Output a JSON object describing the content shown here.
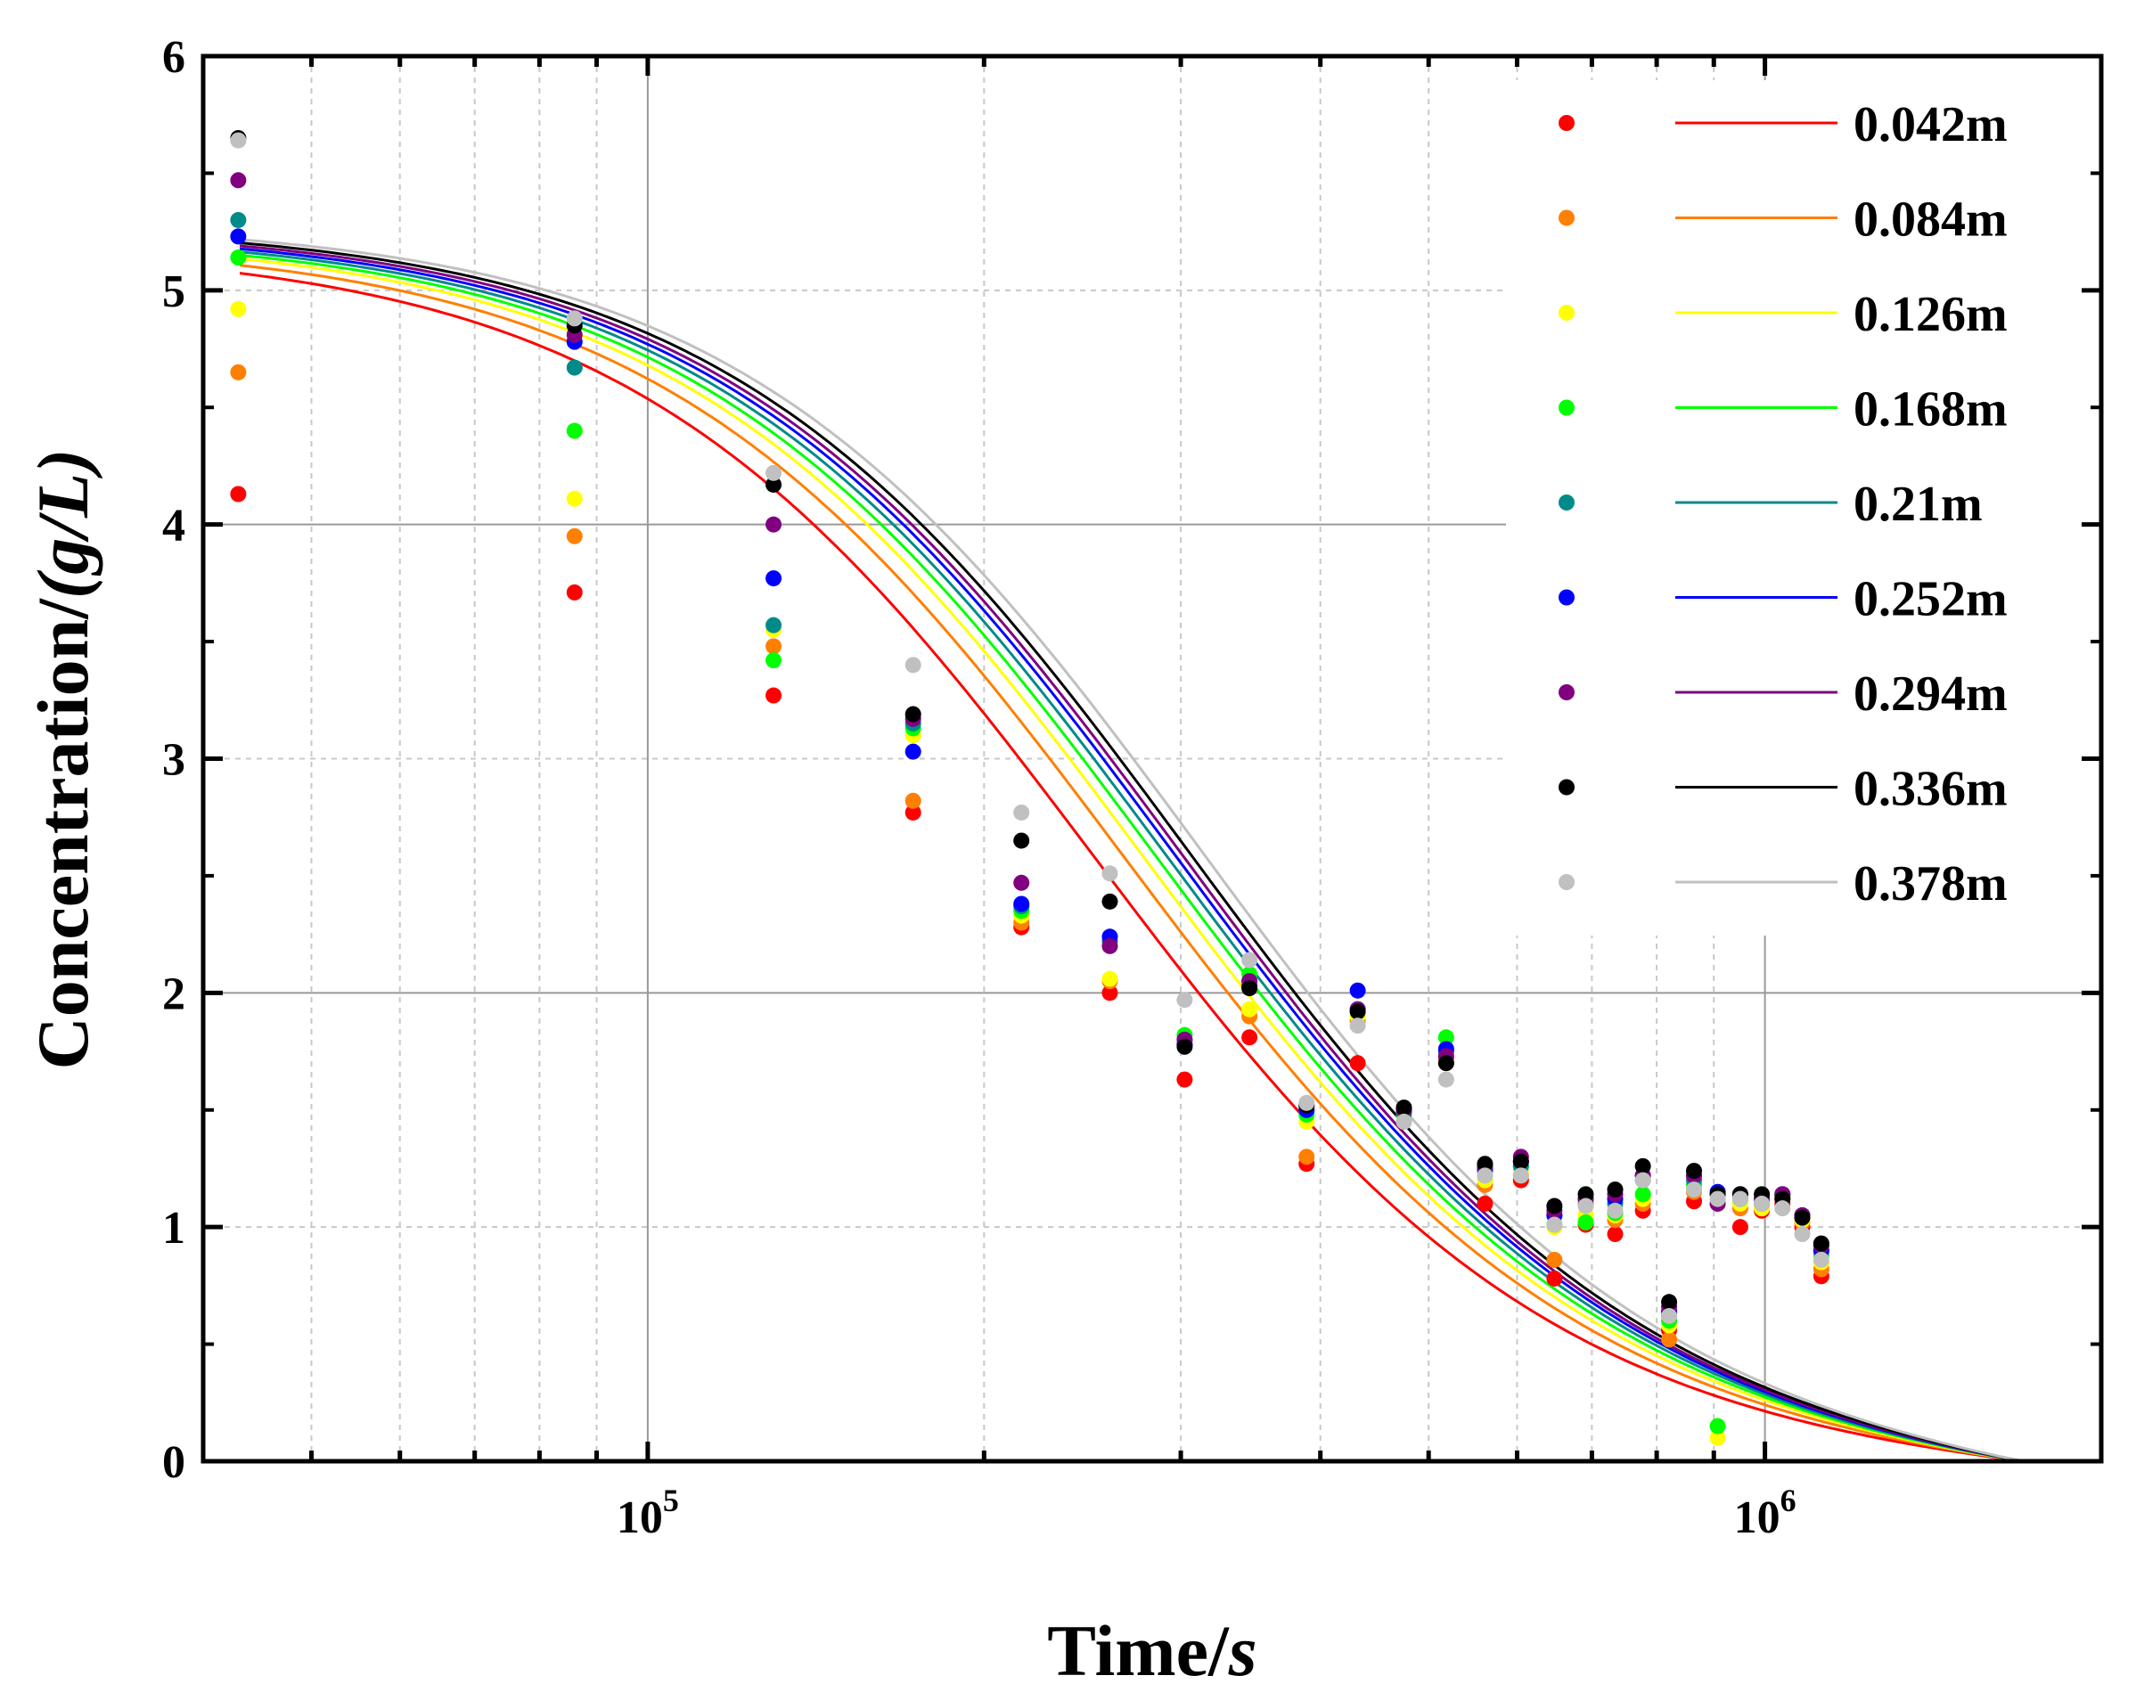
{
  "chart_data": {
    "type": "scatter",
    "xlabel": "Time/",
    "xlabel_unit": "s",
    "ylabel": "Concentration/",
    "ylabel_unit": "(g/L)",
    "xscale": "log",
    "xlim": [
      40000,
      2000000
    ],
    "ylim": [
      0,
      6
    ],
    "y_ticks": [
      "0",
      "1",
      "2",
      "3",
      "4",
      "5",
      "6"
    ],
    "x_ticks": [
      {
        "base": "10",
        "exp": "5",
        "value": 100000
      },
      {
        "base": "10",
        "exp": "6",
        "value": 1000000
      }
    ],
    "grid": true,
    "legend_position": "top-right",
    "x": [
      43000,
      86000,
      129600,
      172800,
      216000,
      259200,
      302400,
      345600,
      388800,
      432000,
      475200,
      518400,
      561600,
      604800,
      648000,
      691200,
      734400,
      777600,
      820800,
      864000,
      907200,
      950400,
      993600,
      1036800,
      1080000,
      1123200
    ],
    "series": [
      {
        "name": "0.042m",
        "color": "#ff0000",
        "fit": {
          "A": 5.2,
          "t50": 250000,
          "k": 2.1
        },
        "values": [
          4.13,
          3.71,
          3.27,
          2.77,
          2.28,
          2.0,
          1.63,
          1.81,
          1.27,
          1.7,
          null,
          1.7,
          1.1,
          1.2,
          0.78,
          1.01,
          0.97,
          1.07,
          0.56,
          1.11,
          null,
          1.0,
          1.07,
          1.1,
          1.0,
          0.79
        ]
      },
      {
        "name": "0.084m",
        "color": "#ff7f00",
        "fit": {
          "A": 5.22,
          "t50": 265000,
          "k": 2.1
        },
        "values": [
          4.65,
          3.95,
          3.48,
          2.82,
          2.3,
          2.05,
          1.78,
          1.9,
          1.3,
          1.88,
          1.45,
          1.72,
          1.18,
          1.22,
          0.86,
          1.05,
          1.03,
          1.1,
          0.52,
          1.15,
          1.1,
          1.08,
          1.08,
          1.12,
          1.02,
          0.82
        ]
      },
      {
        "name": "0.126m",
        "color": "#ffff00",
        "fit": {
          "A": 5.24,
          "t50": 275000,
          "k": 2.1
        },
        "values": [
          4.92,
          4.11,
          3.55,
          3.1,
          2.33,
          2.06,
          1.8,
          1.93,
          1.45,
          1.9,
          1.48,
          1.75,
          1.2,
          1.24,
          1.0,
          1.05,
          1.05,
          1.12,
          0.58,
          1.17,
          0.1,
          1.1,
          1.08,
          1.13,
          1.03,
          0.85
        ]
      },
      {
        "name": "0.168m",
        "color": "#00ff00",
        "fit": {
          "A": 5.25,
          "t50": 282000,
          "k": 2.1
        },
        "values": [
          5.14,
          4.4,
          3.42,
          3.13,
          2.35,
          2.2,
          1.82,
          2.08,
          1.48,
          1.92,
          1.48,
          1.81,
          1.22,
          1.26,
          1.01,
          1.02,
          1.06,
          1.14,
          0.6,
          1.18,
          0.15,
          1.12,
          1.1,
          1.13,
          1.05,
          0.88
        ]
      },
      {
        "name": "0.21m",
        "color": "#008b8b",
        "fit": {
          "A": 5.26,
          "t50": 288000,
          "k": 2.1
        },
        "values": [
          5.3,
          4.67,
          3.57,
          3.15,
          2.37,
          2.22,
          1.8,
          2.05,
          1.5,
          1.93,
          1.49,
          1.75,
          1.24,
          1.26,
          1.05,
          1.1,
          1.1,
          1.2,
          0.62,
          1.2,
          1.14,
          1.12,
          1.1,
          1.14,
          1.05,
          0.9
        ]
      },
      {
        "name": "0.252m",
        "color": "#0000ff",
        "fit": {
          "A": 5.27,
          "t50": 293000,
          "k": 2.1
        },
        "values": [
          5.23,
          4.78,
          3.77,
          3.03,
          2.38,
          2.24,
          1.78,
          2.03,
          1.5,
          2.01,
          1.5,
          1.76,
          1.25,
          1.28,
          1.05,
          1.12,
          1.12,
          1.22,
          0.64,
          1.22,
          1.15,
          1.14,
          1.12,
          1.14,
          1.05,
          0.9
        ]
      },
      {
        "name": "0.294m",
        "color": "#800080",
        "fit": {
          "A": 5.28,
          "t50": 297000,
          "k": 2.1
        },
        "values": [
          5.47,
          4.81,
          4.0,
          3.17,
          2.47,
          2.2,
          1.8,
          2.05,
          1.52,
          1.93,
          1.5,
          1.73,
          1.26,
          1.3,
          1.07,
          1.12,
          1.14,
          1.22,
          0.66,
          1.22,
          1.1,
          1.14,
          1.12,
          1.14,
          1.05,
          0.92
        ]
      },
      {
        "name": "0.336m",
        "color": "#000000",
        "fit": {
          "A": 5.29,
          "t50": 302000,
          "k": 2.1
        },
        "values": [
          5.65,
          4.85,
          4.17,
          3.19,
          2.65,
          2.39,
          1.77,
          2.02,
          1.52,
          1.92,
          1.51,
          1.7,
          1.27,
          1.28,
          1.09,
          1.14,
          1.16,
          1.26,
          0.68,
          1.24,
          1.14,
          1.14,
          1.14,
          1.12,
          1.04,
          0.93
        ]
      },
      {
        "name": "0.378m",
        "color": "#c0c0c0",
        "fit": {
          "A": 5.3,
          "t50": 310000,
          "k": 2.1
        },
        "values": [
          5.64,
          4.88,
          4.22,
          3.4,
          2.77,
          2.51,
          1.97,
          2.14,
          1.53,
          1.86,
          1.45,
          1.63,
          1.22,
          1.22,
          1.01,
          1.09,
          1.07,
          1.2,
          0.62,
          1.16,
          1.12,
          1.12,
          1.1,
          1.08,
          0.97,
          0.86
        ]
      }
    ]
  }
}
